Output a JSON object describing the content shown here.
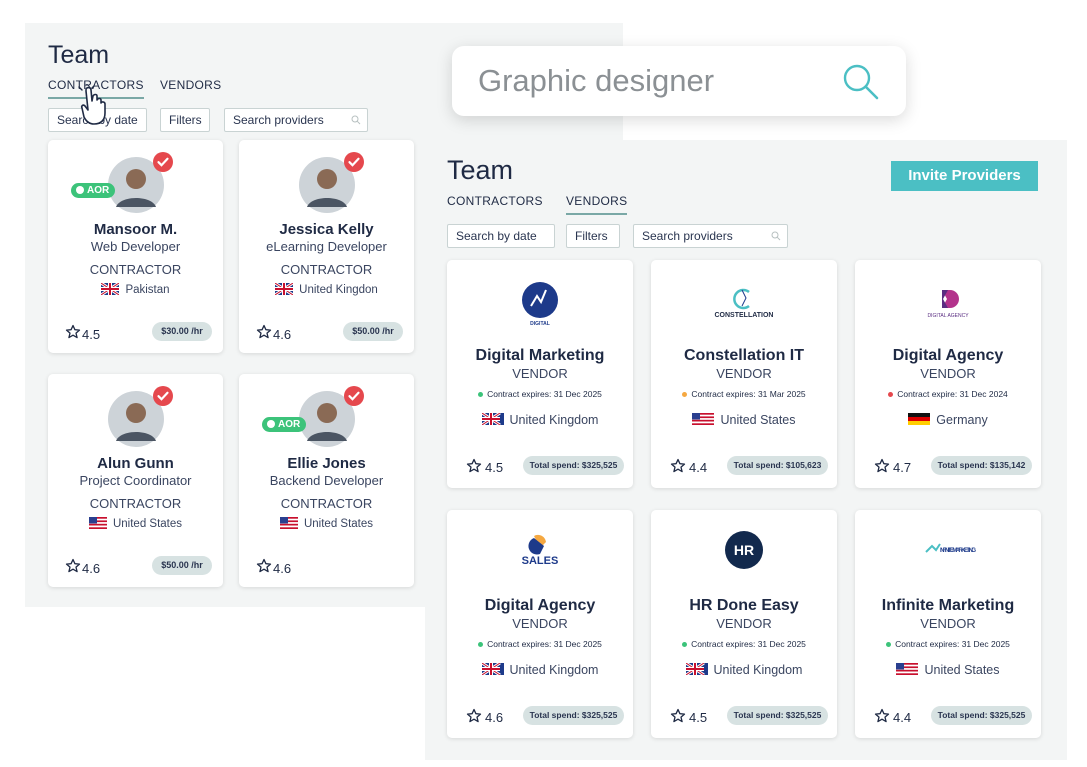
{
  "search": {
    "query": "Graphic designer"
  },
  "back_panel": {
    "title": "Team",
    "tabs": [
      "CONTRACTORS",
      "VENDORS"
    ],
    "buttons": [
      "Search by date",
      "Filters",
      "Search providers"
    ],
    "cards": [
      {
        "name": "Mansoor M.",
        "role": "Web Developer",
        "type": "CONTRACTOR",
        "country": "Pakistan",
        "rating": 4.5,
        "rate": "$30.00 /hr",
        "badge": "AOR"
      },
      {
        "name": "Jessica Kelly",
        "role": "eLearning Developer",
        "type": "CONTRACTOR",
        "country": "United Kingdon",
        "rating": 4.6,
        "rate": "$50.00 /hr"
      },
      {
        "name": "Alun Gunn",
        "role": "Project Coordinator",
        "type": "CONTRACTOR",
        "country": "United States",
        "rating": 4.6,
        "rate": "$50.00 /hr"
      },
      {
        "name": "Ellie Jones",
        "role": "Backend Developer",
        "type": "CONTRACTOR",
        "country": "United States",
        "rating": 4.6,
        "badge": "AOR"
      }
    ]
  },
  "front_panel": {
    "title": "Team",
    "action": "Invite Providers",
    "tabs": [
      "CONTRACTORS",
      "VENDORS"
    ],
    "buttons": [
      "Search by date",
      "Filters",
      "Search providers"
    ],
    "cards": [
      {
        "logo": "DIGITAL",
        "name": "Digital Marketing",
        "type": "VENDOR",
        "contract": "Contract expires: 31 Dec 2025",
        "dot_color": "#3cc37a",
        "country": "United Kingdom",
        "rating": 4.5,
        "spend": "Total spend: $325,525"
      },
      {
        "logo": "CONSTELLATION",
        "name": "Constellation IT",
        "type": "VENDOR",
        "contract": "Contract expires: 31 Mar 2025",
        "dot_color": "#f5a841",
        "country": "United States",
        "rating": 4.4,
        "spend": "Total spend: $105,623"
      },
      {
        "logo": "DIGITAL AGENCY",
        "name": "Digital Agency",
        "type": "VENDOR",
        "contract": "Contract expire: 31 Dec 2024",
        "dot_color": "#e5484d",
        "country": "Germany",
        "rating": 4.7,
        "spend": "Total spend: $135,142"
      },
      {
        "logo": "SALES",
        "name": "Digital Agency",
        "type": "VENDOR",
        "contract": "Contract expires: 31 Dec 2025",
        "dot_color": "#3cc37a",
        "country": "United Kingdom",
        "rating": 4.6,
        "spend": "Total spend: $325,525"
      },
      {
        "logo": "HR",
        "name": "HR Done Easy",
        "type": "VENDOR",
        "contract": "Contract expires: 31 Dec 2025",
        "dot_color": "#3cc37a",
        "country": "United Kingdom",
        "rating": 4.5,
        "spend": "Total spend: $325,525"
      },
      {
        "logo": "INFINITE MARKETING",
        "name": "Infinite Marketing",
        "type": "VENDOR",
        "contract": "Contract expires: 31 Dec 2025",
        "dot_color": "#3cc37a",
        "country": "United States",
        "rating": 4.4,
        "spend": "Total spend: $325,525"
      }
    ]
  }
}
